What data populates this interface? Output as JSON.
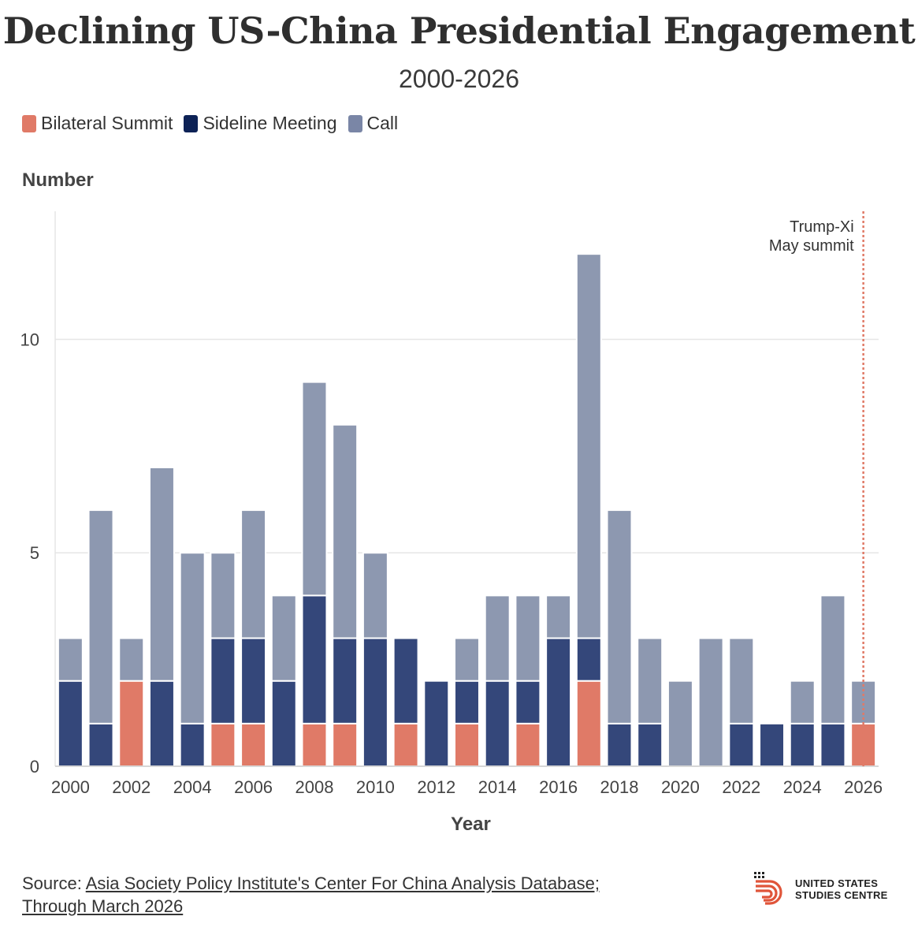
{
  "title": "Declining US-China Presidential Engagement",
  "subtitle": "2000-2026",
  "legend": [
    {
      "label": "Bilateral Summit",
      "color": "#E07A67"
    },
    {
      "label": "Sideline Meeting",
      "color": "#0D2256"
    },
    {
      "label": "Call",
      "color": "#7A86A6"
    }
  ],
  "source": {
    "prefix": "Source: ",
    "line1": "Asia Society Policy Institute's Center For China Analysis Database;",
    "line2": "Through March 2026"
  },
  "logo": {
    "line1": "UNITED STATES",
    "line2": "STUDIES CENTRE"
  },
  "chart_data": {
    "type": "bar",
    "stacked": true,
    "ylabel": "Number",
    "xlabel": "Year",
    "ylim": [
      0,
      13
    ],
    "yticks": [
      0,
      5,
      10
    ],
    "xticks": [
      2000,
      2002,
      2004,
      2006,
      2008,
      2010,
      2012,
      2014,
      2016,
      2018,
      2020,
      2022,
      2024,
      2026
    ],
    "categories": [
      2000,
      2001,
      2002,
      2003,
      2004,
      2005,
      2006,
      2007,
      2008,
      2009,
      2010,
      2011,
      2012,
      2013,
      2014,
      2015,
      2016,
      2017,
      2018,
      2019,
      2020,
      2021,
      2022,
      2023,
      2024,
      2025,
      2026
    ],
    "series": [
      {
        "name": "Bilateral Summit",
        "color": "#E07A67",
        "values": [
          0,
          0,
          2,
          0,
          0,
          1,
          1,
          0,
          1,
          1,
          0,
          1,
          0,
          1,
          0,
          1,
          0,
          2,
          0,
          0,
          0,
          0,
          0,
          0,
          0,
          0,
          1
        ]
      },
      {
        "name": "Sideline Meeting",
        "color": "#34477A",
        "values": [
          2,
          1,
          0,
          2,
          1,
          2,
          2,
          2,
          3,
          2,
          3,
          2,
          2,
          1,
          2,
          1,
          3,
          1,
          1,
          1,
          0,
          0,
          1,
          1,
          1,
          1,
          0
        ]
      },
      {
        "name": "Call",
        "color": "#8D98B0",
        "values": [
          1,
          5,
          1,
          5,
          4,
          2,
          3,
          2,
          5,
          5,
          2,
          0,
          0,
          1,
          2,
          2,
          1,
          9,
          5,
          2,
          2,
          3,
          2,
          0,
          1,
          3,
          1
        ]
      }
    ],
    "annotation": {
      "year": 2026,
      "line1": "Trump-Xi",
      "line2": "May summit",
      "color": "#E07A67"
    },
    "grid": true
  }
}
